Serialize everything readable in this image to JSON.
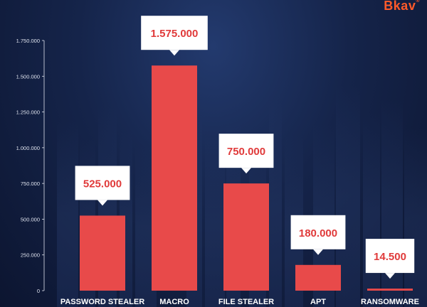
{
  "brand": {
    "logo_text": "Bkav"
  },
  "colors": {
    "bar": "#e84a4a",
    "label_text": "#e03a3a",
    "callout_bg": "#ffffff",
    "axis_text": "#dfe3ee",
    "category_text": "#ffffff"
  },
  "chart_data": {
    "type": "bar",
    "title": "",
    "xlabel": "",
    "ylabel": "",
    "ylim": [
      0,
      1750000
    ],
    "grid": false,
    "yticks": [
      {
        "value": 0,
        "label": "0"
      },
      {
        "value": 250000,
        "label": "250.000"
      },
      {
        "value": 500000,
        "label": "500.000"
      },
      {
        "value": 750000,
        "label": "750.000"
      },
      {
        "value": 1000000,
        "label": "1.000.000"
      },
      {
        "value": 1250000,
        "label": "1.250.000"
      },
      {
        "value": 1500000,
        "label": "1.500.000"
      },
      {
        "value": 1750000,
        "label": "1.750.000"
      }
    ],
    "categories": [
      "PASSWORD STEALER",
      "MACRO",
      "FILE STEALER",
      "APT",
      "RANSOMWARE"
    ],
    "values": [
      525000,
      1575000,
      750000,
      180000,
      14500
    ],
    "data_labels": [
      "525.000",
      "1.575.000",
      "750.000",
      "180.000",
      "14.500"
    ]
  }
}
